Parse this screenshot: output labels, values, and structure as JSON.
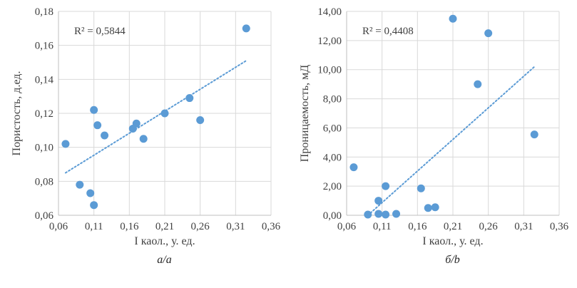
{
  "colors": {
    "point": "#5B9BD5",
    "trend": "#5B9BD5",
    "grid": "#D9D9D9",
    "axis": "#BFBFBF",
    "text": "#404040"
  },
  "chart_data": [
    {
      "type": "scatter",
      "name": "porosity-vs-kaolinite-index",
      "caption": "а/a",
      "r2_label": "R² = 0,5844",
      "xlabel": "I каол., у. ед.",
      "ylabel": "Пористость, д.ед.",
      "xlim": [
        0.06,
        0.36
      ],
      "ylim": [
        0.06,
        0.18
      ],
      "x_ticks": [
        0.06,
        0.11,
        0.16,
        0.21,
        0.26,
        0.31,
        0.36
      ],
      "y_ticks": [
        0.06,
        0.08,
        0.1,
        0.12,
        0.14,
        0.16,
        0.18
      ],
      "grid": true,
      "legend": "none",
      "points": [
        [
          0.07,
          0.102
        ],
        [
          0.09,
          0.078
        ],
        [
          0.105,
          0.073
        ],
        [
          0.11,
          0.066
        ],
        [
          0.11,
          0.122
        ],
        [
          0.115,
          0.113
        ],
        [
          0.125,
          0.107
        ],
        [
          0.165,
          0.111
        ],
        [
          0.17,
          0.114
        ],
        [
          0.18,
          0.105
        ],
        [
          0.21,
          0.12
        ],
        [
          0.245,
          0.129
        ],
        [
          0.26,
          0.116
        ],
        [
          0.325,
          0.17
        ]
      ],
      "trendline": {
        "x1": 0.07,
        "y1": 0.085,
        "x2": 0.325,
        "y2": 0.151,
        "style": "dotted"
      }
    },
    {
      "type": "scatter",
      "name": "permeability-vs-kaolinite-index",
      "caption": "б/b",
      "r2_label": "R² = 0,4408",
      "xlabel": "I каол., у. ед.",
      "ylabel": "Проницаемость, мД",
      "xlim": [
        0.06,
        0.36
      ],
      "ylim": [
        0,
        14
      ],
      "x_ticks": [
        0.06,
        0.11,
        0.16,
        0.21,
        0.26,
        0.31,
        0.36
      ],
      "y_ticks": [
        0,
        2,
        4,
        6,
        8,
        10,
        12,
        14
      ],
      "grid": true,
      "legend": "none",
      "points": [
        [
          0.07,
          3.3
        ],
        [
          0.09,
          0.05
        ],
        [
          0.105,
          0.1
        ],
        [
          0.105,
          1.0
        ],
        [
          0.115,
          2.0
        ],
        [
          0.115,
          0.05
        ],
        [
          0.13,
          0.1
        ],
        [
          0.165,
          1.85
        ],
        [
          0.175,
          0.5
        ],
        [
          0.185,
          0.55
        ],
        [
          0.21,
          13.5
        ],
        [
          0.245,
          9.0
        ],
        [
          0.26,
          12.5
        ],
        [
          0.325,
          5.55
        ]
      ],
      "trendline": {
        "x1": 0.09,
        "y1": 0.0,
        "x2": 0.325,
        "y2": 10.2,
        "style": "dotted"
      }
    }
  ]
}
